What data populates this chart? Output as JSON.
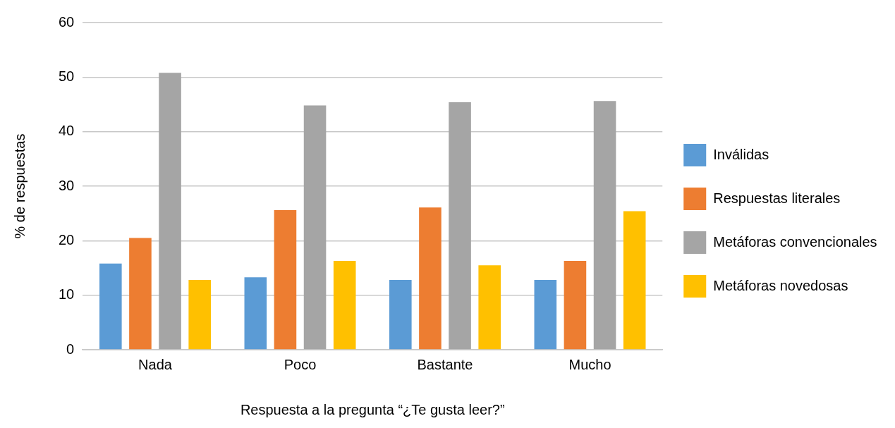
{
  "chart_data": {
    "type": "bar",
    "xlabel": "Respuesta a la pregunta “¿Te gusta leer?”",
    "ylabel": "% de respuestas",
    "categories": [
      "Nada",
      "Poco",
      "Bastante",
      "Mucho"
    ],
    "series": [
      {
        "name": "Inválidas",
        "color": "#5b9bd5",
        "values": [
          15.8,
          13.3,
          12.8,
          12.8
        ]
      },
      {
        "name": "Respuestas literales",
        "color": "#ed7d31",
        "values": [
          20.5,
          25.6,
          26.1,
          16.3
        ]
      },
      {
        "name": "Metáforas convencionales",
        "color": "#a5a5a5",
        "values": [
          50.8,
          44.8,
          45.4,
          45.6
        ]
      },
      {
        "name": "Metáforas novedosas",
        "color": "#ffc000",
        "values": [
          12.8,
          16.3,
          15.5,
          25.4
        ]
      }
    ],
    "ylim": [
      0,
      60
    ],
    "yticks": [
      0,
      10,
      20,
      30,
      40,
      50,
      60
    ],
    "grid": "y",
    "legend": "right"
  }
}
